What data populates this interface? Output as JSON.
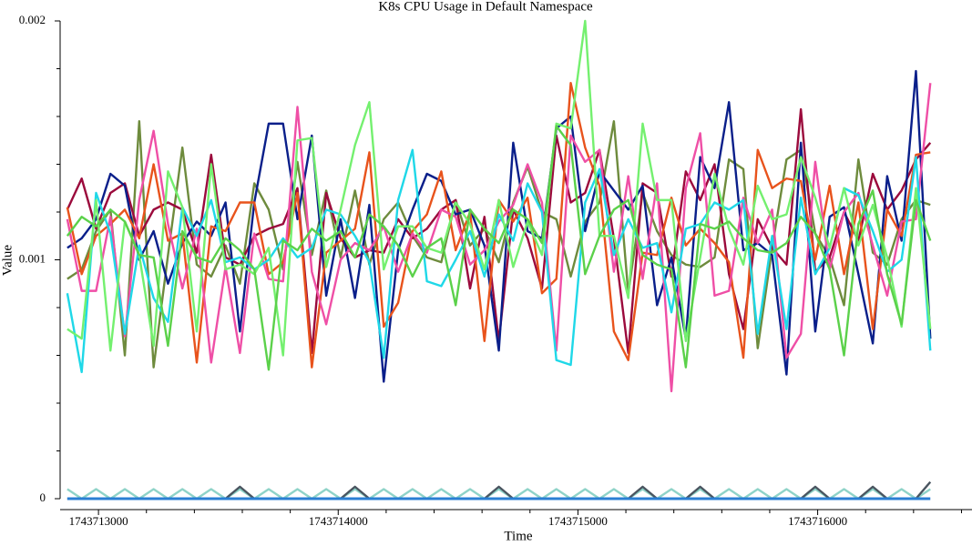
{
  "chart_data": {
    "type": "line",
    "title": "K8s CPU Usage in Default Namespace",
    "x_label": "Time",
    "y_label": "Value",
    "x": [
      1743712870,
      1743712930,
      1743712990,
      1743713050,
      1743713110,
      1743713170,
      1743713230,
      1743713290,
      1743713350,
      1743713410,
      1743713470,
      1743713530,
      1743713590,
      1743713650,
      1743713710,
      1743713770,
      1743713830,
      1743713890,
      1743713950,
      1743714010,
      1743714070,
      1743714130,
      1743714190,
      1743714250,
      1743714310,
      1743714370,
      1743714430,
      1743714490,
      1743714550,
      1743714610,
      1743714670,
      1743714730,
      1743714790,
      1743714850,
      1743714910,
      1743714970,
      1743715030,
      1743715090,
      1743715150,
      1743715210,
      1743715270,
      1743715330,
      1743715390,
      1743715450,
      1743715510,
      1743715570,
      1743715630,
      1743715690,
      1743715750,
      1743715810,
      1743715870,
      1743715930,
      1743715990,
      1743716050,
      1743716110,
      1743716170,
      1743716230,
      1743716290,
      1743716350,
      1743716410,
      1743716470
    ],
    "xlim": [
      1743712840,
      1743716640
    ],
    "xticks": [
      1743713000,
      1743714000,
      1743715000,
      1743716000
    ],
    "xminorticks": [
      1743713200,
      1743713400,
      1743713600,
      1743713800,
      1743714200,
      1743714400,
      1743714600,
      1743714800,
      1743715200,
      1743715400,
      1743715600,
      1743715800,
      1743716200,
      1743716400,
      1743716600
    ],
    "ylim": [
      0,
      0.002
    ],
    "yticks": [
      0,
      0.001,
      0.002
    ],
    "yminorticks": [
      0.0002,
      0.0004,
      0.0006,
      0.0008,
      0.0012,
      0.0014,
      0.0016,
      0.0018
    ],
    "series": [
      {
        "color": "#6e8b3d",
        "values": [
          0.00092,
          0.00096,
          0.00112,
          0.00121,
          0.0006,
          0.00158,
          0.00055,
          0.00102,
          0.00147,
          0.00098,
          0.00093,
          0.00106,
          0.0009,
          0.00132,
          0.00121,
          0.00096,
          0.00141,
          0.00102,
          0.00129,
          0.00101,
          0.00129,
          0.00098,
          0.00117,
          0.00124,
          0.0011,
          0.00101,
          0.00099,
          0.00125,
          0.00106,
          0.00113,
          0.00099,
          0.00124,
          0.00139,
          0.0012,
          0.00117,
          0.00093,
          0.00116,
          0.00124,
          0.00158,
          0.00086,
          0.00128,
          0.00112,
          0.00102,
          0.00098,
          0.00097,
          0.00101,
          0.00142,
          0.00138,
          0.00063,
          0.00105,
          0.00142,
          0.00146,
          0.00111,
          0.00101,
          0.00081,
          0.00142,
          0.00103,
          0.00098,
          0.00117,
          0.00125,
          0.00123
        ]
      },
      {
        "color": "#9b0a3c",
        "values": [
          0.00121,
          0.00134,
          0.00113,
          0.00128,
          0.00132,
          0.0011,
          0.00121,
          0.00124,
          0.00121,
          0.00103,
          0.00144,
          0.00101,
          0.00098,
          0.0011,
          0.00113,
          0.00115,
          0.0013,
          0.00061,
          0.00128,
          0.00109,
          0.00101,
          0.00104,
          0.00103,
          0.00117,
          0.00109,
          0.00113,
          0.00121,
          0.00125,
          0.00088,
          0.00118,
          0.00066,
          0.00121,
          0.00109,
          0.00088,
          0.00152,
          0.00124,
          0.00128,
          0.00146,
          0.00109,
          0.00061,
          0.00132,
          0.00128,
          0.00093,
          0.00137,
          0.00125,
          0.0014,
          0.00094,
          0.00071,
          0.00117,
          0.00105,
          0.00098,
          0.00163,
          0.00095,
          0.00101,
          0.0012,
          0.00108,
          0.00136,
          0.00121,
          0.00129,
          0.00142,
          0.00149
        ]
      },
      {
        "color": "#0a1f8a",
        "values": [
          0.00105,
          0.00109,
          0.00117,
          0.00136,
          0.00131,
          0.001,
          0.00112,
          0.0009,
          0.00107,
          0.00116,
          0.0011,
          0.00124,
          0.0007,
          0.00124,
          0.00157,
          0.00157,
          0.00117,
          0.00152,
          0.00085,
          0.00117,
          0.00084,
          0.00123,
          0.00049,
          0.00104,
          0.00121,
          0.00136,
          0.00133,
          0.00119,
          0.00121,
          0.00106,
          0.00062,
          0.00149,
          0.00112,
          0.00109,
          0.00155,
          0.0016,
          0.00112,
          0.00137,
          0.00129,
          0.00121,
          0.00131,
          0.00081,
          0.00101,
          0.00067,
          0.00143,
          0.0013,
          0.00166,
          0.00104,
          0.00107,
          0.00102,
          0.00052,
          0.00149,
          0.0007,
          0.00118,
          0.00122,
          0.00094,
          0.00065,
          0.00135,
          0.00108,
          0.00179,
          0.00067
        ]
      },
      {
        "color": "#e8531c",
        "values": [
          0.00122,
          0.00094,
          0.0011,
          0.00115,
          0.00121,
          0.00109,
          0.0014,
          0.00108,
          0.00111,
          0.00057,
          0.00114,
          0.00112,
          0.00124,
          0.00124,
          0.00094,
          0.00099,
          0.00128,
          0.00055,
          0.00103,
          0.00108,
          0.00113,
          0.00145,
          0.00072,
          0.00082,
          0.00112,
          0.00119,
          0.00137,
          0.00104,
          0.0012,
          0.00066,
          0.00125,
          0.00116,
          0.00126,
          0.00086,
          0.00092,
          0.00174,
          0.00147,
          0.00131,
          0.0007,
          0.00058,
          0.00103,
          0.00102,
          0.00126,
          0.00106,
          0.00113,
          0.00107,
          0.00099,
          0.00059,
          0.00146,
          0.0013,
          0.00134,
          0.00133,
          0.001,
          0.00131,
          0.00094,
          0.00124,
          0.00071,
          0.00121,
          0.0011,
          0.00144,
          0.00145
        ]
      },
      {
        "color": "#ef4fa6",
        "values": [
          0.00117,
          0.00087,
          0.00087,
          0.00118,
          0.00068,
          0.00125,
          0.00154,
          0.00115,
          0.00088,
          0.00113,
          0.00057,
          0.00097,
          0.00061,
          0.00111,
          0.00092,
          0.00091,
          0.00164,
          0.00095,
          0.00073,
          0.001,
          0.00107,
          0.00104,
          0.00114,
          0.00095,
          0.00111,
          0.00103,
          0.00121,
          0.00118,
          0.00098,
          0.00104,
          0.00116,
          0.00123,
          0.0014,
          0.00124,
          0.00062,
          0.00152,
          0.00141,
          0.00146,
          0.00095,
          0.00135,
          0.00092,
          0.00132,
          0.00045,
          0.0013,
          0.00153,
          0.00085,
          0.00087,
          0.00126,
          0.00107,
          0.00121,
          0.00059,
          0.00069,
          0.00141,
          0.00096,
          0.0012,
          0.00128,
          0.00106,
          0.00085,
          0.00116,
          0.00117,
          0.00174
        ]
      },
      {
        "color": "#1fd8e8",
        "values": [
          0.00086,
          0.00053,
          0.00128,
          0.00111,
          0.00069,
          0.00106,
          0.00084,
          0.00074,
          0.00122,
          0.0011,
          0.00125,
          0.00099,
          0.00101,
          0.00096,
          0.001,
          0.00109,
          0.00101,
          0.00105,
          0.00121,
          0.00119,
          0.0011,
          0.00099,
          0.00059,
          0.00125,
          0.00146,
          0.00091,
          0.00089,
          0.001,
          0.00112,
          0.00093,
          0.00119,
          0.00108,
          0.00132,
          0.0012,
          0.00058,
          0.00056,
          0.00124,
          0.00138,
          0.00102,
          0.00117,
          0.00105,
          0.00107,
          0.00078,
          0.00113,
          0.00115,
          0.00124,
          0.00121,
          0.00125,
          0.00069,
          0.0011,
          0.00071,
          0.00126,
          0.00094,
          0.00105,
          0.0013,
          0.00127,
          0.00112,
          0.00095,
          0.001,
          0.00143,
          0.00062
        ]
      },
      {
        "color": "#74f06f",
        "values": [
          0.00071,
          0.00067,
          0.00125,
          0.00062,
          0.00116,
          0.00102,
          0.00064,
          0.00137,
          0.00122,
          0.0007,
          0.0014,
          0.00096,
          0.00098,
          0.00094,
          0.00105,
          0.0006,
          0.0015,
          0.00151,
          0.00097,
          0.00121,
          0.00148,
          0.00166,
          0.00096,
          0.00114,
          0.00114,
          0.00105,
          0.00103,
          0.00124,
          0.00115,
          0.00096,
          0.00125,
          0.00097,
          0.00116,
          0.00102,
          0.00157,
          0.00155,
          0.002,
          0.0011,
          0.0011,
          0.00084,
          0.00157,
          0.00125,
          0.00125,
          0.00066,
          0.00101,
          0.00136,
          0.00113,
          0.00098,
          0.00131,
          0.00117,
          0.00119,
          0.00143,
          0.00126,
          0.00105,
          0.0013,
          0.00106,
          0.00123,
          0.00101,
          0.00072,
          0.0013,
          0.00071
        ]
      },
      {
        "color": "#5bd14a",
        "values": [
          0.0011,
          0.00118,
          0.00114,
          0.00121,
          0.00116,
          0.00102,
          0.00101,
          0.00064,
          0.00112,
          0.00101,
          0.00099,
          0.00109,
          0.00104,
          0.00096,
          0.00054,
          0.00108,
          0.00104,
          0.00113,
          0.00108,
          0.00112,
          0.00101,
          0.00119,
          0.00114,
          0.00106,
          0.00093,
          0.00105,
          0.00109,
          0.00081,
          0.00121,
          0.00113,
          0.00107,
          0.00121,
          0.00117,
          0.00107,
          0.00156,
          0.00148,
          0.00094,
          0.0011,
          0.00121,
          0.00125,
          0.00102,
          0.00098,
          0.00096,
          0.00055,
          0.00115,
          0.00113,
          0.00116,
          0.00109,
          0.00104,
          0.00103,
          0.00107,
          0.00118,
          0.00111,
          0.00096,
          0.0006,
          0.00115,
          0.00129,
          0.00094,
          0.00073,
          0.00125,
          0.00108
        ]
      },
      {
        "color": "#8fd3c8",
        "values": [
          4e-05,
          0,
          4e-05,
          0,
          4e-05,
          0,
          4e-05,
          0,
          4e-05,
          0,
          4e-05,
          0,
          4e-05,
          0,
          4e-05,
          0,
          4e-05,
          0,
          4e-05,
          0,
          4e-05,
          0,
          4e-05,
          0,
          4e-05,
          0,
          4e-05,
          0,
          4e-05,
          0,
          4e-05,
          0,
          4e-05,
          0,
          4e-05,
          0,
          4e-05,
          0,
          4e-05,
          0,
          4e-05,
          0,
          4e-05,
          0,
          4e-05,
          0,
          4e-05,
          0,
          4e-05,
          0,
          4e-05,
          0,
          4e-05,
          0,
          4e-05,
          0,
          4e-05,
          0,
          4e-05,
          0,
          4e-05
        ]
      },
      {
        "color": "#4a5560",
        "values": [
          0,
          0,
          0,
          0,
          0,
          0,
          0,
          0,
          0,
          0,
          0,
          0,
          5e-05,
          0,
          0,
          0,
          0,
          0,
          0,
          0,
          5e-05,
          0,
          0,
          0,
          0,
          0,
          0,
          0,
          0,
          0,
          5e-05,
          0,
          0,
          0,
          0,
          0,
          0,
          0,
          0,
          0,
          5e-05,
          0,
          0,
          0,
          5e-05,
          0,
          0,
          0,
          0,
          0,
          0,
          0,
          5e-05,
          0,
          0,
          0,
          5e-05,
          0,
          0,
          0,
          7e-05
        ]
      },
      {
        "color": "#2a7fd4",
        "values": [
          0,
          0,
          0,
          0,
          0,
          0,
          0,
          0,
          0,
          0,
          0,
          0,
          0,
          0,
          0,
          0,
          0,
          0,
          0,
          0,
          0,
          0,
          0,
          0,
          0,
          0,
          0,
          0,
          0,
          0,
          0,
          0,
          0,
          0,
          0,
          0,
          0,
          0,
          0,
          0,
          0,
          0,
          0,
          0,
          0,
          0,
          0,
          0,
          0,
          0,
          0,
          0,
          0,
          0,
          0,
          0,
          0,
          0,
          0,
          0,
          0
        ]
      }
    ]
  }
}
